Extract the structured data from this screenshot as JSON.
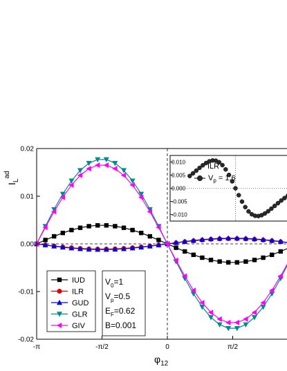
{
  "chart_data": {
    "type": "line",
    "xlabel": {
      "main": "φ",
      "sub": "12"
    },
    "ylabel": {
      "main": "I",
      "sub": "L",
      "sup": "ad"
    },
    "xlim": [
      -3.1416,
      3.1416
    ],
    "ylim": [
      -0.02,
      0.02
    ],
    "xticks": [
      {
        "v": -3.1416,
        "label": "-π"
      },
      {
        "v": -1.5708,
        "label": "-π/2"
      },
      {
        "v": 0,
        "label": "0"
      },
      {
        "v": 1.5708,
        "label": "π/2"
      }
    ],
    "yticks": [
      {
        "v": 0.02,
        "label": "0.02"
      },
      {
        "v": 0.01,
        "label": "0.01"
      },
      {
        "v": 0,
        "label": "0.00"
      },
      {
        "v": -0.01,
        "label": "-0.01"
      },
      {
        "v": -0.02,
        "label": "-0.02"
      }
    ],
    "series": [
      {
        "name": "IUD",
        "amplitude": 0.0039,
        "color": "#000000",
        "marker": "square"
      },
      {
        "name": "ILR",
        "amplitude": -0.0011,
        "color": "#e00000",
        "marker": "circle"
      },
      {
        "name": "GUD",
        "amplitude": -0.0012,
        "color": "#0000e0",
        "marker": "triangle-up"
      },
      {
        "name": "GLR",
        "amplitude": 0.0178,
        "color": "#008b8b",
        "marker": "triangle-down"
      },
      {
        "name": "GIV",
        "amplitude": 0.0166,
        "color": "#ff00ff",
        "marker": "triangle-left"
      }
    ],
    "parameters": [
      {
        "main": "V",
        "sub": "0",
        "rest": "=1"
      },
      {
        "main": "V",
        "sub": "p",
        "rest": "=0.5"
      },
      {
        "main": "E",
        "sub": "F",
        "rest": "=0.62"
      },
      {
        "main": "B=0.001",
        "sub": "",
        "rest": ""
      }
    ],
    "inset": {
      "title": "ILR",
      "legend": {
        "main": "V",
        "sub": "p",
        "rest": " = 1.6"
      },
      "ylim": [
        -0.0125,
        0.0125
      ],
      "yticks": [
        {
          "v": 0.01,
          "label": "0.010"
        },
        {
          "v": 0.005,
          "label": "0.005"
        },
        {
          "v": 0,
          "label": "0.000"
        },
        {
          "v": -0.005,
          "label": "-0.005"
        },
        {
          "v": -0.01,
          "label": "-0.010"
        }
      ],
      "amplitude": -0.0106,
      "skew": 0.6
    }
  }
}
